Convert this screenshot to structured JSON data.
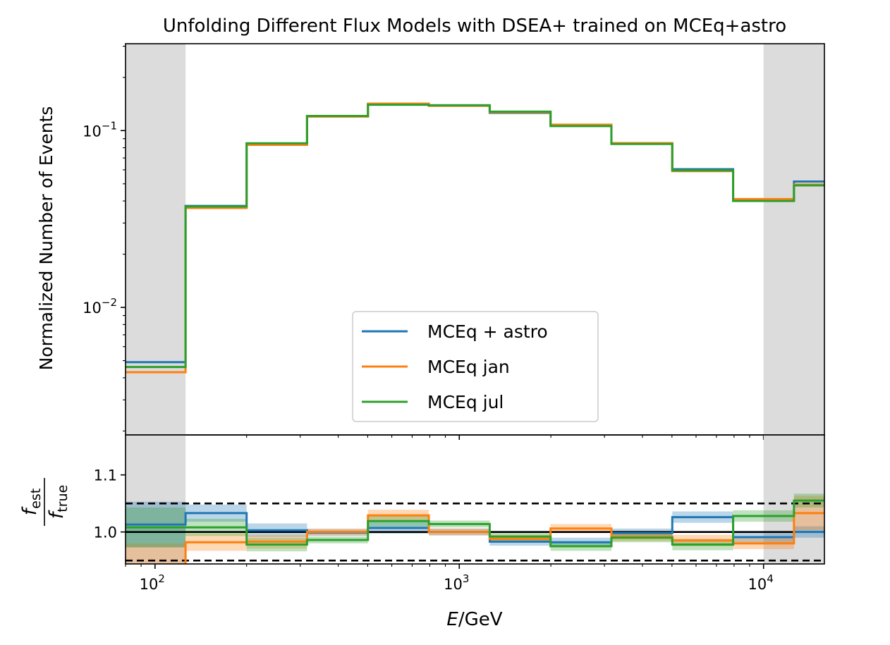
{
  "chart_data": [
    {
      "type": "line",
      "step": "bins",
      "title": "Unfolding Different Flux Models with DSEA+ trained on MCEq+astro",
      "ylabel": "Normalized Number of Events",
      "xscale": "log",
      "yscale": "log",
      "xlim": [
        80,
        15850
      ],
      "ylim": [
        0.0019,
        0.31
      ],
      "x_tick_labels": [
        "10^2",
        "10^3",
        "10^4"
      ],
      "y_tick_labels": [
        "10^-2",
        "10^-1"
      ],
      "bin_edges": [
        80,
        126,
        200,
        316,
        501,
        794,
        1259,
        1995,
        3162,
        5012,
        7943,
        12589,
        15850
      ],
      "excluded_regions": [
        [
          80,
          126
        ],
        [
          10000,
          15850
        ]
      ],
      "excluded_color": "#dcdcdc",
      "legend": {
        "position": "lower center"
      },
      "series": [
        {
          "name": "MCEq + astro",
          "color": "#1f77b4",
          "values": [
            0.0049,
            0.0375,
            0.0845,
            0.121,
            0.141,
            0.139,
            0.126,
            0.107,
            0.0845,
            0.0605,
            0.0405,
            0.0515
          ]
        },
        {
          "name": "MCEq jan",
          "color": "#ff7f0e",
          "values": [
            0.0043,
            0.0365,
            0.083,
            0.12,
            0.142,
            0.138,
            0.127,
            0.108,
            0.085,
            0.059,
            0.041,
            0.0495
          ]
        },
        {
          "name": "MCEq jul",
          "color": "#2ca02c",
          "values": [
            0.0046,
            0.0372,
            0.0848,
            0.121,
            0.14,
            0.139,
            0.128,
            0.106,
            0.084,
            0.0595,
            0.04,
            0.049
          ]
        }
      ]
    },
    {
      "type": "line",
      "step": "bins",
      "xlabel_prefix": "E",
      "xlabel_suffix": "/GeV",
      "ylabel_num": "f",
      "ylabel_num_sub": "est",
      "ylabel_den": "f",
      "ylabel_den_sub": "true",
      "xscale": "log",
      "xlim": [
        80,
        15850
      ],
      "ylim": [
        0.944,
        1.17
      ],
      "y_ticks": [
        "1.0",
        "1.1"
      ],
      "reference_line": 1.0,
      "dashed_lines": [
        0.95,
        1.05
      ],
      "band_alpha": 0.3,
      "series": [
        {
          "name": "MCEq + astro",
          "color": "#1f77b4",
          "values": [
            1.013,
            1.033,
            1.003,
            0.999,
            1.007,
            1.0,
            0.983,
            0.982,
            0.998,
            1.026,
            0.991,
            1.0
          ],
          "band": [
            0.04,
            0.015,
            0.012,
            0.006,
            0.01,
            0.006,
            0.007,
            0.008,
            0.008,
            0.01,
            0.01,
            0.01
          ]
        },
        {
          "name": "MCEq jan",
          "color": "#ff7f0e",
          "values": [
            0.94,
            0.982,
            0.983,
            1.0,
            1.029,
            1.0,
            0.988,
            1.006,
            0.992,
            0.985,
            0.98,
            1.033
          ],
          "band": [
            0.04,
            0.015,
            0.012,
            0.006,
            0.01,
            0.006,
            0.007,
            0.008,
            0.008,
            0.01,
            0.01,
            0.03
          ]
        },
        {
          "name": "MCEq jul",
          "color": "#2ca02c",
          "values": [
            1.008,
            1.008,
            0.978,
            0.986,
            1.019,
            1.014,
            0.992,
            0.975,
            0.99,
            0.978,
            1.028,
            1.055
          ],
          "band": [
            0.035,
            0.015,
            0.012,
            0.006,
            0.01,
            0.006,
            0.007,
            0.008,
            0.008,
            0.01,
            0.01,
            0.012
          ]
        }
      ]
    }
  ]
}
